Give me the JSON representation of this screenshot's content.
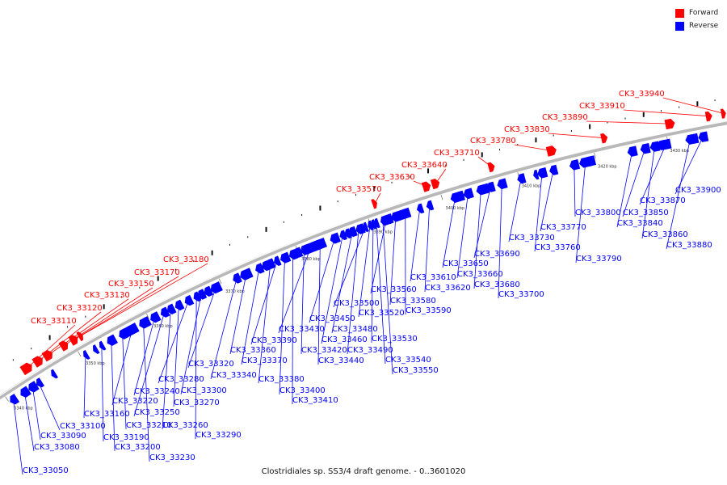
{
  "legend": {
    "forward_label": "Forward",
    "reverse_label": "Reverse",
    "forward_color": "#ff0000",
    "reverse_color": "#0000ff"
  },
  "caption": "Clostridiales sp. SS3/4 draft genome. - 0..3601020",
  "backbone_color": "#b8b8b8",
  "axis_ticks": [
    "3340 kbp",
    "3350 kbp",
    "3360 kbp",
    "3370 kbp",
    "3380 kbp",
    "3390 kbp",
    "3400 kbp",
    "3410 kbp",
    "3420 kbp",
    "3430 kbp"
  ],
  "forward_genes": [
    "CK3_33110",
    "CK3_33120",
    "CK3_33130",
    "CK3_33150",
    "CK3_33170",
    "CK3_33180",
    "CK3_33570",
    "CK3_33630",
    "CK3_33640",
    "CK3_33710",
    "CK3_33780",
    "CK3_33830",
    "CK3_33890",
    "CK3_33910",
    "CK3_33940"
  ],
  "reverse_genes": [
    "CK3_33050",
    "CK3_33080",
    "CK3_33090",
    "CK3_33100",
    "CK3_33160",
    "CK3_33190",
    "CK3_33200",
    "CK3_33210",
    "CK3_33220",
    "CK3_33230",
    "CK3_33240",
    "CK3_33250",
    "CK3_33260",
    "CK3_33270",
    "CK3_33280",
    "CK3_33290",
    "CK3_33300",
    "CK3_33320",
    "CK3_33340",
    "CK3_33360",
    "CK3_33370",
    "CK3_33380",
    "CK3_33390",
    "CK3_33400",
    "CK3_33410",
    "CK3_33420",
    "CK3_33430",
    "CK3_33440",
    "CK3_33450",
    "CK3_33460",
    "CK3_33480",
    "CK3_33490",
    "CK3_33500",
    "CK3_33520",
    "CK3_33530",
    "CK3_33540",
    "CK3_33550",
    "CK3_33560",
    "CK3_33580",
    "CK3_33590",
    "CK3_33610",
    "CK3_33620",
    "CK3_33650",
    "CK3_33660",
    "CK3_33680",
    "CK3_33690",
    "CK3_33700",
    "CK3_33730",
    "CK3_33760",
    "CK3_33770",
    "CK3_33790",
    "CK3_33800",
    "CK3_33840",
    "CK3_33850",
    "CK3_33860",
    "CK3_33870",
    "CK3_33880",
    "CK3_33900"
  ]
}
